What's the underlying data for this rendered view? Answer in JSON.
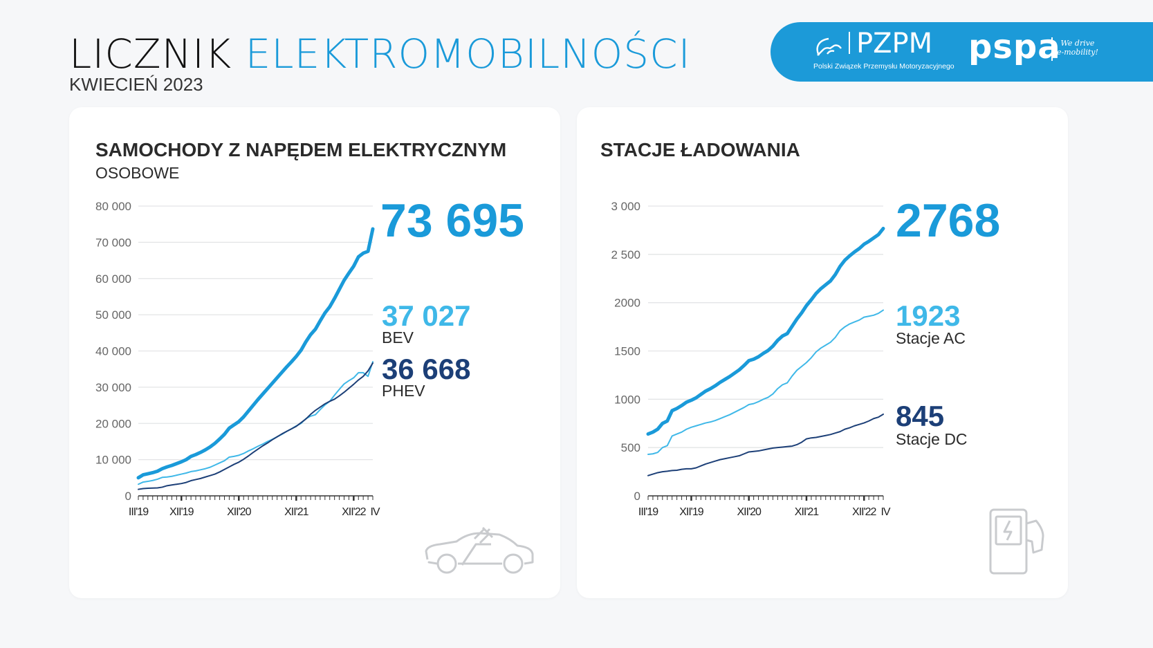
{
  "header": {
    "title_part1": "LICZNIK",
    "title_part2": "ELEKTROMOBILNOŚCI",
    "subtitle": "KWIECIEŃ 2023"
  },
  "logos": {
    "pzpm": "PZPM",
    "pzpm_full": "Polski Związek Przemysłu Motoryzacyjnego",
    "pspa": "pspa",
    "pspa_tagline1": "We drive",
    "pspa_tagline2": "e-mobility!"
  },
  "colors": {
    "total": "#1a9ad9",
    "light": "#3fb8e8",
    "dark": "#1c3f77",
    "brand": "#1c9ad8"
  },
  "cards": [
    {
      "title": "SAMOCHODY Z NAPĘDEM ELEKTRYCZNYM",
      "subtitle": "OSOBOWE",
      "total": "73 695",
      "s1_value": "37 027",
      "s1_label": "BEV",
      "s2_value": "36 668",
      "s2_label": "PHEV",
      "icon": "electric-car-icon"
    },
    {
      "title": "STACJE ŁADOWANIA",
      "total": "2768",
      "s1_value": "1923",
      "s1_label": "Stacje AC",
      "s2_value": "845",
      "s2_label": "Stacje DC",
      "icon": "charging-station-icon"
    }
  ],
  "chart_data": [
    {
      "type": "line",
      "x_start": "III'19",
      "x_end": "IV'23",
      "x_unit": "month",
      "ylim": [
        0,
        80000
      ],
      "yticks": [
        0,
        10000,
        20000,
        30000,
        40000,
        50000,
        60000,
        70000,
        80000
      ],
      "ytick_labels": [
        "0",
        "10 000",
        "20 000",
        "30 000",
        "40 000",
        "50 000",
        "60 000",
        "70 000",
        "80 000"
      ],
      "xtick_labels": [
        {
          "label": "III'19",
          "month_index": 0
        },
        {
          "label": "XII'19",
          "month_index": 9
        },
        {
          "label": "XII'20",
          "month_index": 21
        },
        {
          "label": "XII'21",
          "month_index": 33
        },
        {
          "label": "XII'22",
          "month_index": 45
        },
        {
          "label": "IV",
          "month_index": 49
        }
      ],
      "grid": true,
      "series": [
        {
          "name": "BEV",
          "color": "#3fb8e8",
          "values": [
            3200,
            3800,
            4000,
            4250,
            4600,
            5100,
            5200,
            5400,
            5700,
            6000,
            6300,
            6700,
            6900,
            7200,
            7500,
            7900,
            8500,
            9100,
            9700,
            10700,
            10900,
            11200,
            11700,
            12400,
            13000,
            13700,
            14300,
            15000,
            15600,
            16300,
            17000,
            17800,
            18500,
            19300,
            20000,
            21300,
            22000,
            22400,
            23800,
            25100,
            26100,
            27800,
            29400,
            30900,
            31800,
            32600,
            34000,
            34000,
            33000,
            37027
          ]
        },
        {
          "name": "PHEV",
          "color": "#1c3f77",
          "values": [
            1800,
            2000,
            2100,
            2150,
            2200,
            2400,
            2800,
            3000,
            3200,
            3400,
            3700,
            4200,
            4500,
            4800,
            5200,
            5600,
            6000,
            6600,
            7300,
            8000,
            8700,
            9300,
            10100,
            11000,
            12000,
            12900,
            13800,
            14600,
            15500,
            16300,
            17100,
            17800,
            18500,
            19200,
            20200,
            21200,
            22500,
            23600,
            24500,
            25400,
            26100,
            26700,
            27600,
            28600,
            29700,
            30800,
            32000,
            33000,
            34500,
            36668
          ]
        },
        {
          "name": "total",
          "color": "#1a9ad9",
          "values": [
            5000,
            5800,
            6100,
            6400,
            6800,
            7500,
            8000,
            8400,
            8900,
            9400,
            10000,
            10900,
            11400,
            12000,
            12700,
            13500,
            14500,
            15700,
            17000,
            18700,
            19600,
            20500,
            21800,
            23400,
            25000,
            26600,
            28100,
            29600,
            31100,
            32600,
            34100,
            35600,
            37000,
            38500,
            40200,
            42500,
            44500,
            46000,
            48300,
            50500,
            52200,
            54500,
            57000,
            59500,
            61500,
            63400,
            66000,
            67000,
            67500,
            73695
          ]
        }
      ]
    },
    {
      "type": "line",
      "x_start": "III'19",
      "x_end": "IV'23",
      "x_unit": "month",
      "ylim": [
        0,
        3000
      ],
      "yticks": [
        0,
        500,
        1000,
        1500,
        2000,
        2500,
        3000
      ],
      "ytick_labels": [
        "0",
        "500",
        "1000",
        "1500",
        "2000",
        "2 500",
        "3 000"
      ],
      "xtick_labels": [
        {
          "label": "III'19",
          "month_index": 0
        },
        {
          "label": "XII'19",
          "month_index": 9
        },
        {
          "label": "XII'20",
          "month_index": 21
        },
        {
          "label": "XII'21",
          "month_index": 33
        },
        {
          "label": "XII'22",
          "month_index": 45
        },
        {
          "label": "IV",
          "month_index": 49
        }
      ],
      "grid": true,
      "series": [
        {
          "name": "Stacje AC",
          "color": "#3fb8e8",
          "values": [
            430,
            435,
            450,
            500,
            520,
            620,
            640,
            660,
            690,
            710,
            725,
            740,
            755,
            765,
            780,
            800,
            820,
            840,
            865,
            890,
            915,
            945,
            955,
            975,
            1000,
            1020,
            1055,
            1110,
            1150,
            1170,
            1240,
            1300,
            1340,
            1380,
            1430,
            1490,
            1530,
            1560,
            1590,
            1640,
            1710,
            1750,
            1780,
            1800,
            1820,
            1850,
            1860,
            1870,
            1890,
            1923
          ]
        },
        {
          "name": "Stacje DC",
          "color": "#1c3f77",
          "values": [
            210,
            225,
            240,
            250,
            255,
            262,
            265,
            275,
            280,
            280,
            290,
            310,
            330,
            345,
            360,
            375,
            385,
            395,
            405,
            415,
            435,
            455,
            460,
            465,
            475,
            485,
            495,
            500,
            505,
            510,
            515,
            530,
            555,
            590,
            600,
            605,
            615,
            625,
            635,
            650,
            665,
            690,
            705,
            725,
            740,
            755,
            775,
            800,
            815,
            845
          ]
        },
        {
          "name": "total",
          "color": "#1a9ad9",
          "values": [
            640,
            660,
            690,
            750,
            775,
            882,
            905,
            935,
            970,
            990,
            1015,
            1050,
            1085,
            1110,
            1140,
            1175,
            1205,
            1235,
            1270,
            1305,
            1350,
            1400,
            1415,
            1440,
            1475,
            1505,
            1550,
            1610,
            1655,
            1680,
            1755,
            1830,
            1895,
            1970,
            2030,
            2095,
            2145,
            2185,
            2225,
            2290,
            2375,
            2440,
            2485,
            2525,
            2560,
            2605,
            2635,
            2670,
            2705,
            2768
          ]
        }
      ]
    }
  ]
}
